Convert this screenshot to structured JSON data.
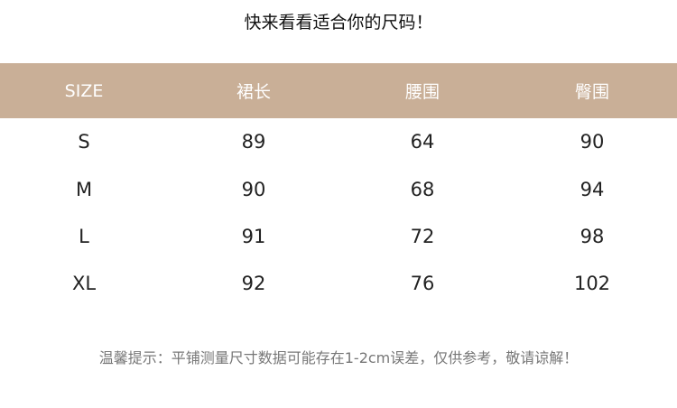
{
  "title": "快来看看适合你的尺码！",
  "colors": {
    "header_bg": "#c9af97",
    "header_text": "#ffffff"
  },
  "table": {
    "headers": [
      "SIZE",
      "裙长",
      "腰围",
      "臀围"
    ],
    "rows": [
      [
        "S",
        "89",
        "64",
        "90"
      ],
      [
        "M",
        "90",
        "68",
        "94"
      ],
      [
        "L",
        "91",
        "72",
        "98"
      ],
      [
        "XL",
        "92",
        "76",
        "102"
      ]
    ]
  },
  "note": "温馨提示：平铺测量尺寸数据可能存在1-2cm误差，仅供参考，敬请谅解！"
}
